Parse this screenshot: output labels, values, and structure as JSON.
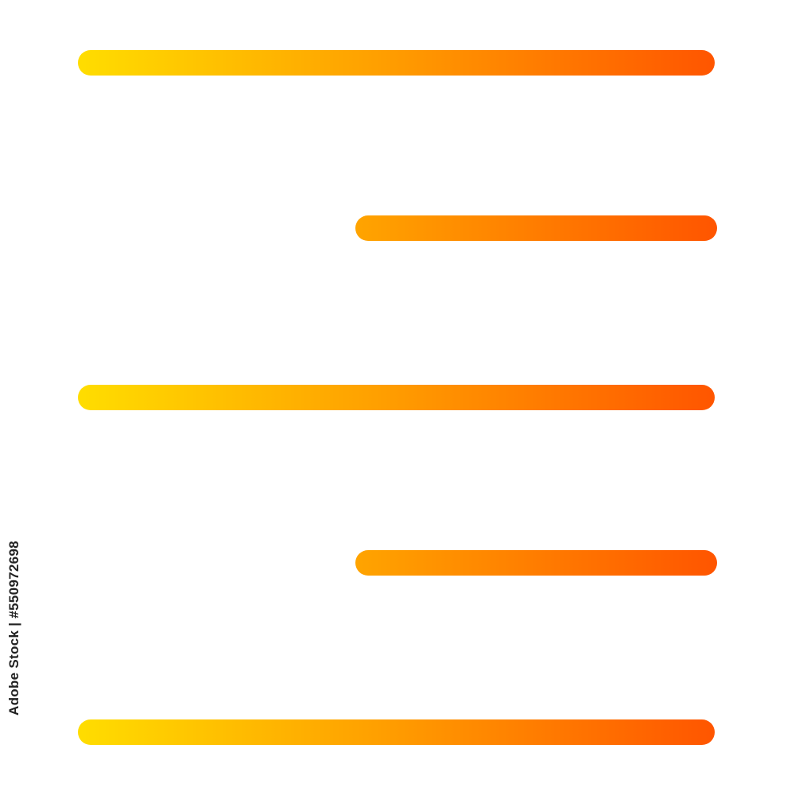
{
  "icon": {
    "name": "align-right-icon",
    "gradient_start": "#FFDD00",
    "gradient_end": "#FF5500",
    "lines": [
      {
        "length": "full"
      },
      {
        "length": "short"
      },
      {
        "length": "full"
      },
      {
        "length": "short"
      },
      {
        "length": "full"
      }
    ]
  },
  "watermark": {
    "text": "Adobe Stock | #550972698"
  }
}
